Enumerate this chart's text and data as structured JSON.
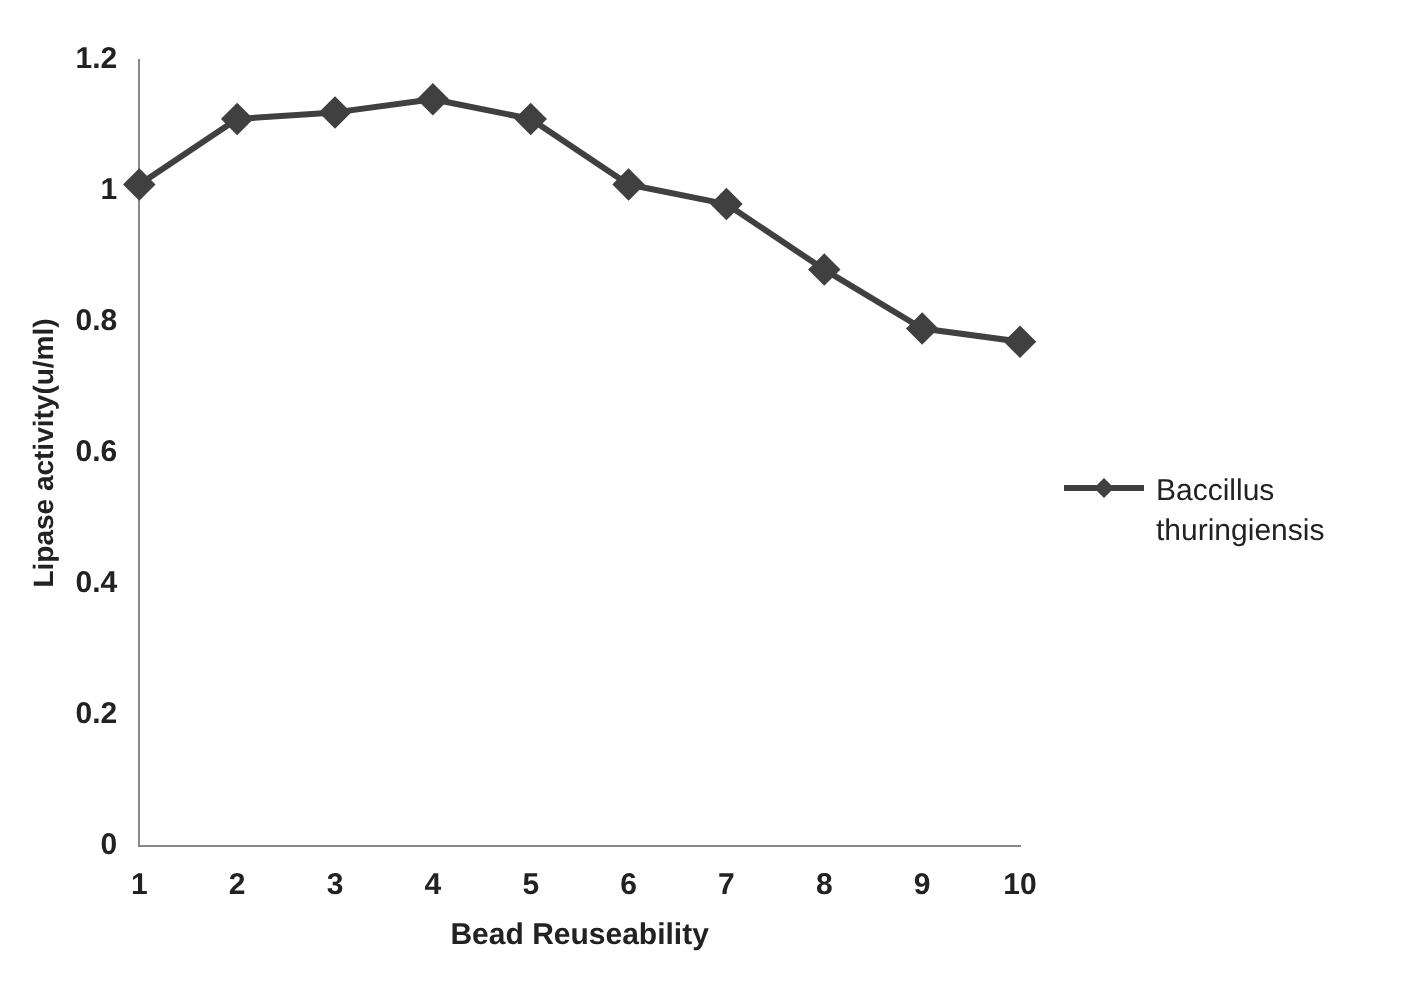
{
  "chart_data": {
    "type": "line",
    "xlabel": "Bead Reuseability",
    "ylabel": "Lipase activity(u/ml)",
    "categories": [
      "1",
      "2",
      "3",
      "4",
      "5",
      "6",
      "7",
      "8",
      "9",
      "10"
    ],
    "series": [
      {
        "name": "Baccillus thuringiensis",
        "color": "#404040",
        "values": [
          1.01,
          1.11,
          1.12,
          1.14,
          1.11,
          1.01,
          0.98,
          0.88,
          0.79,
          0.77
        ]
      }
    ],
    "ylim": [
      0,
      1.2
    ],
    "yticks": [
      0,
      0.2,
      0.4,
      0.6,
      0.8,
      1,
      1.2
    ],
    "grid": false,
    "legend": "right",
    "marker": "diamond",
    "line_style": "solid"
  }
}
